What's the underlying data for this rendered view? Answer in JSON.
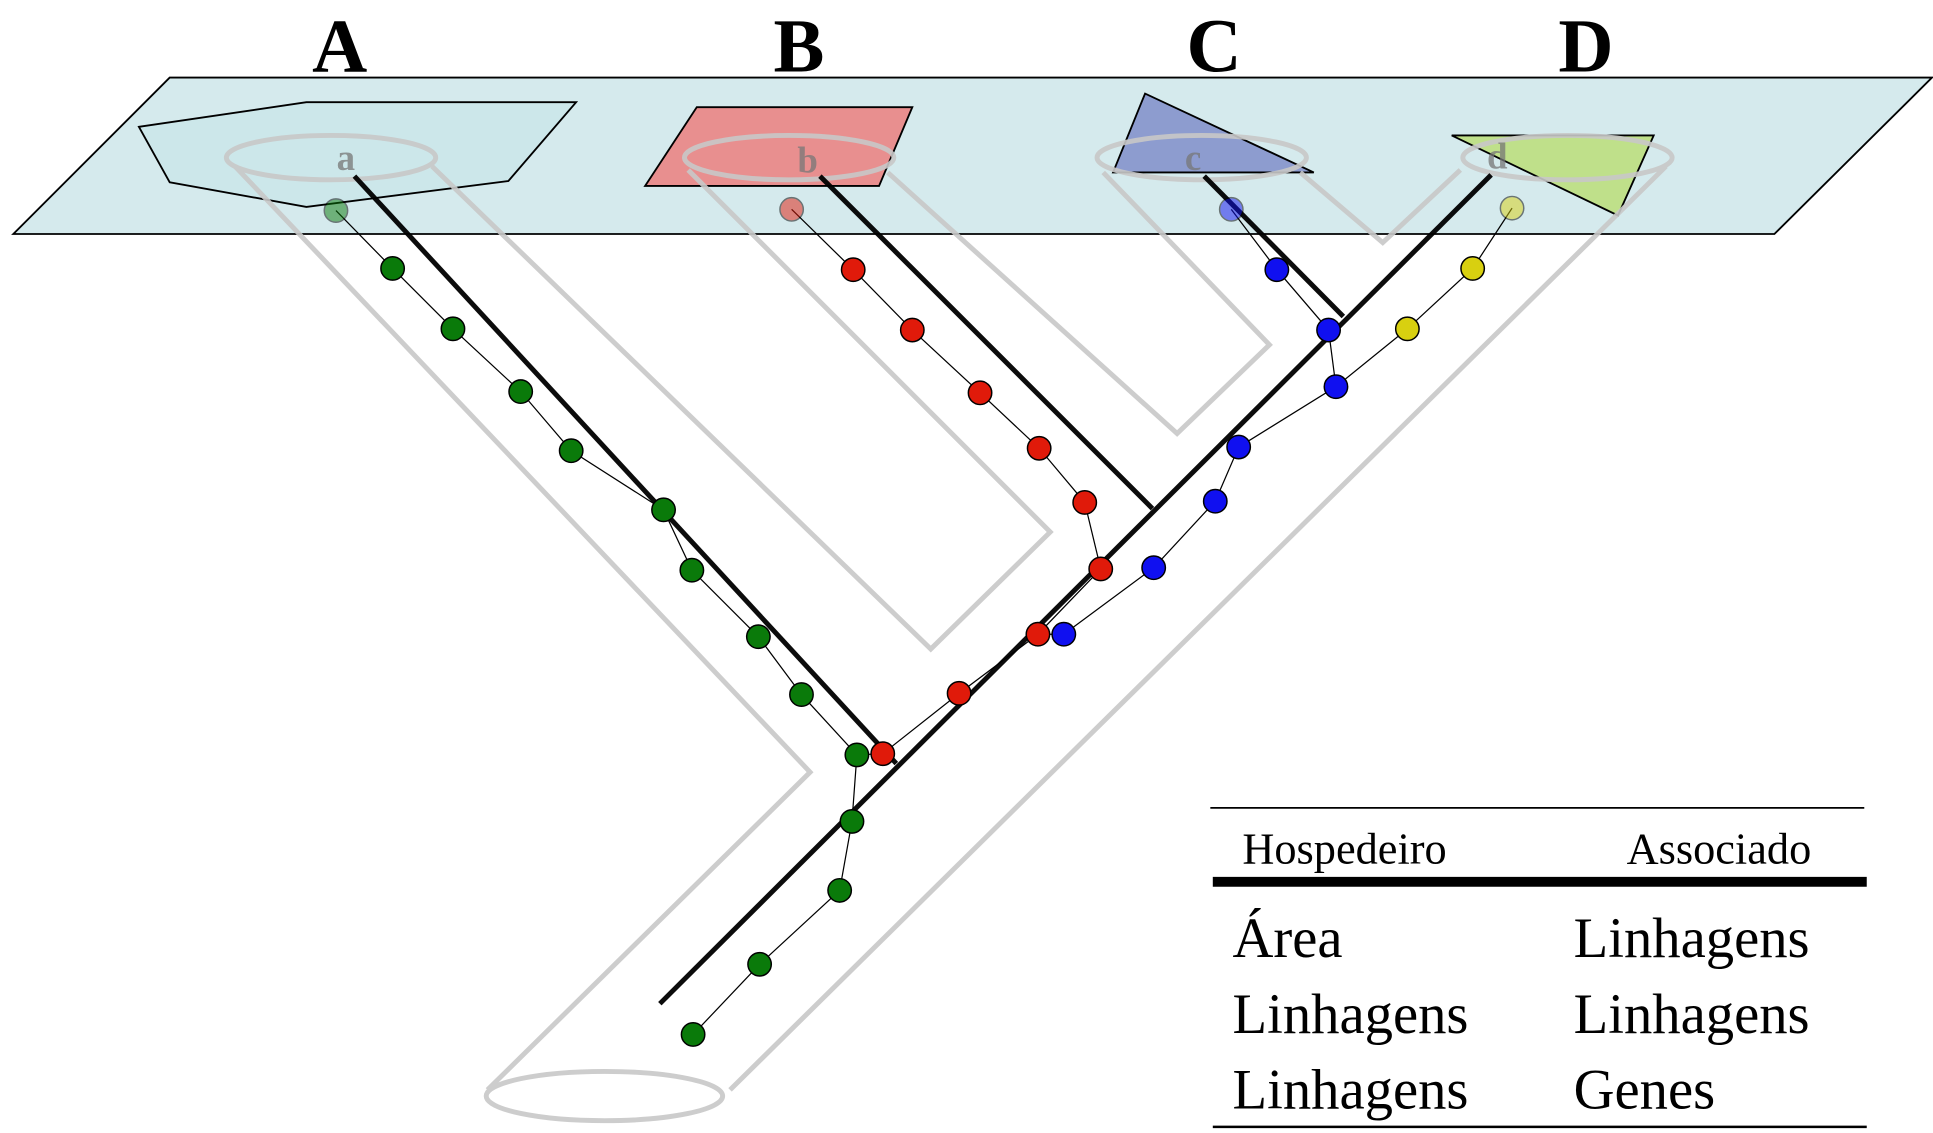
{
  "regions": [
    {
      "label": "A",
      "sublabel": "a"
    },
    {
      "label": "B",
      "sublabel": "b"
    },
    {
      "label": "C",
      "sublabel": "c"
    },
    {
      "label": "D",
      "sublabel": "d"
    }
  ],
  "table": {
    "header": [
      "Hospedeiro",
      "Associado"
    ],
    "rows": [
      [
        "Área",
        "Linhagens"
      ],
      [
        "Linhagens",
        "Linhagens"
      ],
      [
        "Linhagens",
        "Genes"
      ]
    ]
  }
}
